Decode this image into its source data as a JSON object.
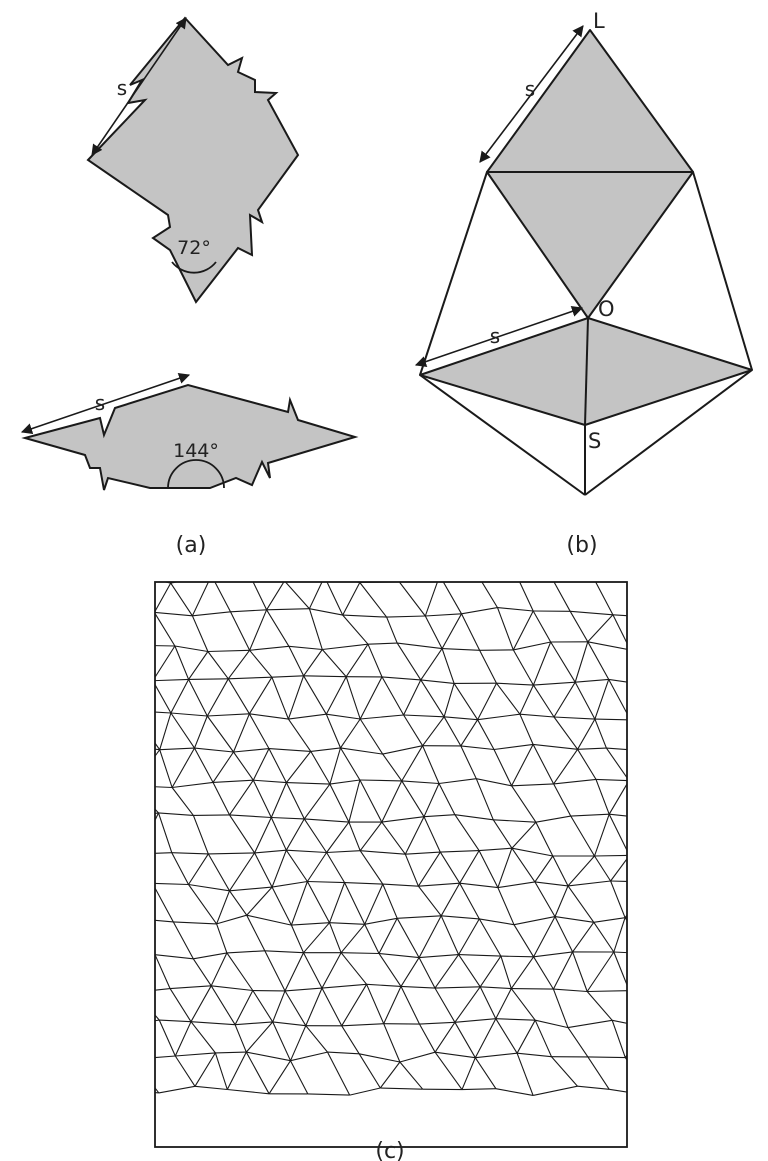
{
  "colors": {
    "fill": "#c4c4c4",
    "stroke": "#1a1a1a",
    "background": "#ffffff"
  },
  "panel_a": {
    "caption": "(a)",
    "kite_angle": "72°",
    "dart_angle": "144°",
    "side_label": "s"
  },
  "panel_b": {
    "caption": "(b)",
    "side_label": "s",
    "point_top": "L",
    "point_center": "O",
    "point_bottom": "S"
  },
  "panel_c": {
    "caption": "(c)"
  }
}
